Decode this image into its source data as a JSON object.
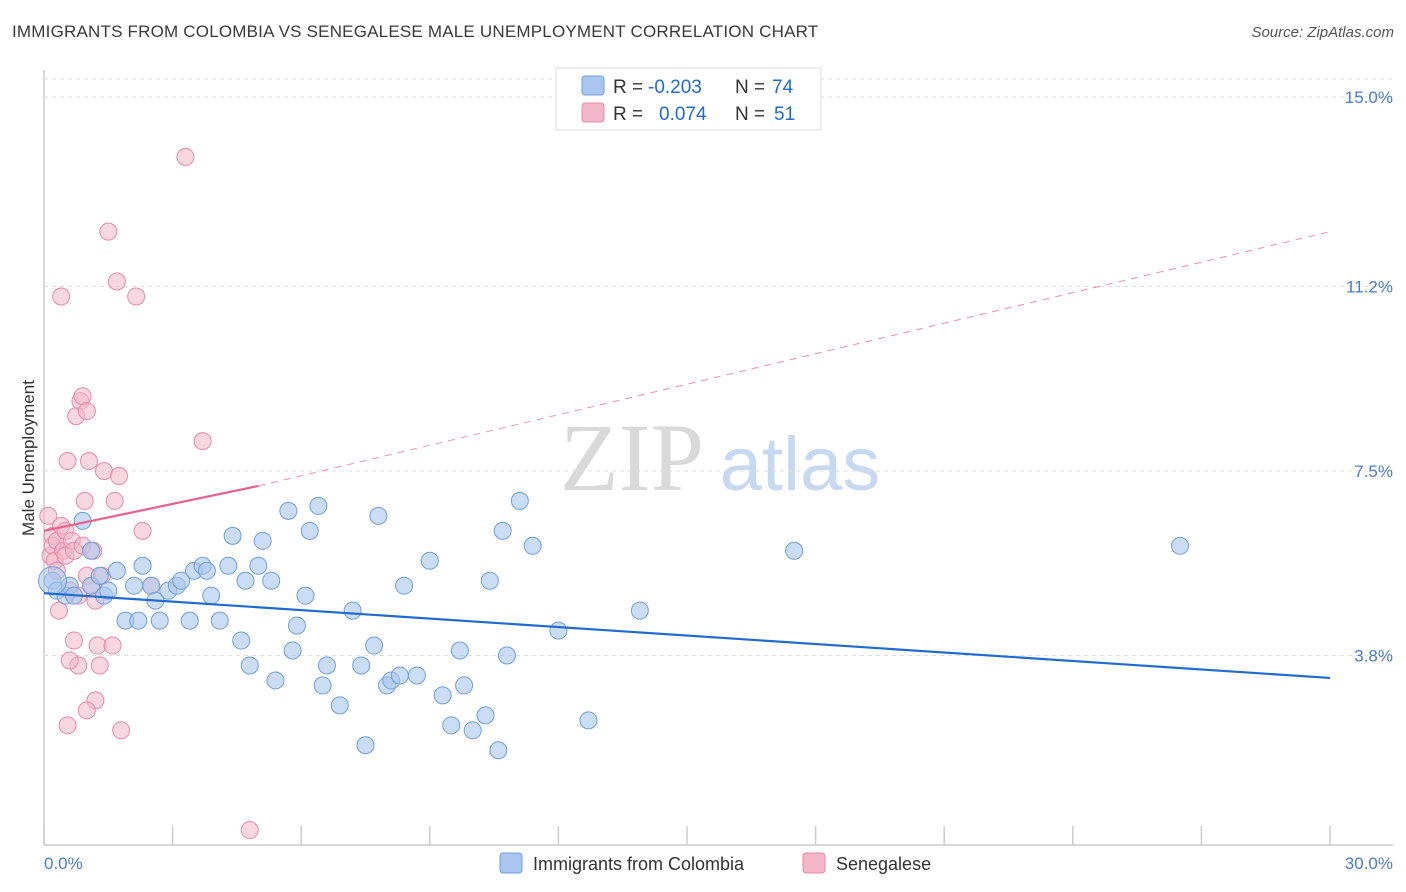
{
  "title": "IMMIGRANTS FROM COLOMBIA VS SENEGALESE MALE UNEMPLOYMENT CORRELATION CHART",
  "source": "Source: ZipAtlas.com",
  "watermark": {
    "zip": "ZIP",
    "atlas": "atlas"
  },
  "colors": {
    "blue": "#a9c6ee",
    "blue_edge": "#6f9fe0",
    "blue_line": "#1f6bd1",
    "pink": "#f4b6c9",
    "pink_edge": "#e88aa8",
    "pink_line": "#e8608c",
    "tick": "#4a7cc9",
    "grid": "#dddddd"
  },
  "legend": {
    "rows": [
      {
        "r_label": "R =",
        "r_value": "-0.203",
        "n_label": "N =",
        "n_value": "74"
      },
      {
        "r_label": "R =",
        "r_value": "0.074",
        "n_label": "N =",
        "n_value": "51"
      }
    ]
  },
  "bottom_legend": [
    "Immigrants from Colombia",
    "Senegalese"
  ],
  "chart_data": {
    "type": "scatter",
    "title": "IMMIGRANTS FROM COLOMBIA VS SENEGALESE MALE UNEMPLOYMENT CORRELATION CHART",
    "xlabel": "",
    "ylabel": "Male Unemployment",
    "xlim": [
      0,
      30
    ],
    "ylim": [
      0,
      15.9
    ],
    "x_tick_labels": [
      "0.0%",
      "30.0%"
    ],
    "y_ticks": [
      3.8,
      7.5,
      11.2,
      15.0
    ],
    "y_tick_labels": [
      "3.8%",
      "7.5%",
      "11.2%",
      "15.0%"
    ],
    "grid": true,
    "series": [
      {
        "name": "Immigrants from Colombia",
        "R": -0.203,
        "N": 74,
        "trend": {
          "x": [
            0,
            30
          ],
          "y": [
            5.05,
            3.35
          ],
          "style": "solid"
        },
        "points": [
          [
            0.2,
            5.3
          ],
          [
            0.3,
            5.1
          ],
          [
            0.5,
            5.0
          ],
          [
            0.6,
            5.2
          ],
          [
            0.7,
            5.0
          ],
          [
            0.9,
            6.5
          ],
          [
            1.1,
            5.2
          ],
          [
            1.1,
            5.9
          ],
          [
            1.3,
            5.4
          ],
          [
            1.4,
            5.0
          ],
          [
            1.5,
            5.1
          ],
          [
            1.7,
            5.5
          ],
          [
            1.9,
            4.5
          ],
          [
            2.1,
            5.2
          ],
          [
            2.2,
            4.5
          ],
          [
            2.3,
            5.6
          ],
          [
            2.5,
            5.2
          ],
          [
            2.6,
            4.9
          ],
          [
            2.7,
            4.5
          ],
          [
            2.9,
            5.1
          ],
          [
            3.1,
            5.2
          ],
          [
            3.2,
            5.3
          ],
          [
            3.4,
            4.5
          ],
          [
            3.5,
            5.5
          ],
          [
            3.7,
            5.6
          ],
          [
            3.8,
            5.5
          ],
          [
            3.9,
            5.0
          ],
          [
            4.1,
            4.5
          ],
          [
            4.3,
            5.6
          ],
          [
            4.4,
            6.2
          ],
          [
            4.6,
            4.1
          ],
          [
            4.7,
            5.3
          ],
          [
            4.8,
            3.6
          ],
          [
            5.0,
            5.6
          ],
          [
            5.1,
            6.1
          ],
          [
            5.3,
            5.3
          ],
          [
            5.4,
            3.3
          ],
          [
            5.7,
            6.7
          ],
          [
            5.8,
            3.9
          ],
          [
            5.9,
            4.4
          ],
          [
            6.1,
            5.0
          ],
          [
            6.2,
            6.3
          ],
          [
            6.4,
            6.8
          ],
          [
            6.5,
            3.2
          ],
          [
            6.6,
            3.6
          ],
          [
            6.9,
            2.8
          ],
          [
            7.2,
            4.7
          ],
          [
            7.4,
            3.6
          ],
          [
            7.5,
            2.0
          ],
          [
            7.7,
            4.0
          ],
          [
            7.8,
            6.6
          ],
          [
            8.0,
            3.2
          ],
          [
            8.1,
            3.3
          ],
          [
            8.3,
            3.4
          ],
          [
            8.4,
            5.2
          ],
          [
            8.7,
            3.4
          ],
          [
            9.0,
            5.7
          ],
          [
            9.3,
            3.0
          ],
          [
            9.5,
            2.4
          ],
          [
            9.7,
            3.9
          ],
          [
            9.8,
            3.2
          ],
          [
            10.0,
            2.3
          ],
          [
            10.3,
            2.6
          ],
          [
            10.4,
            5.3
          ],
          [
            10.6,
            1.9
          ],
          [
            10.7,
            6.3
          ],
          [
            10.8,
            3.8
          ],
          [
            11.1,
            6.9
          ],
          [
            11.4,
            6.0
          ],
          [
            12.0,
            4.3
          ],
          [
            12.7,
            2.5
          ],
          [
            13.9,
            4.7
          ],
          [
            17.5,
            5.9
          ],
          [
            26.5,
            6.0
          ]
        ]
      },
      {
        "name": "Senegalese",
        "R": 0.074,
        "N": 51,
        "trend_solid": {
          "x": [
            0,
            5.0
          ],
          "y": [
            6.3,
            7.2
          ]
        },
        "trend_dashed": {
          "x": [
            5.0,
            30
          ],
          "y": [
            7.2,
            12.3
          ]
        },
        "points": [
          [
            0.1,
            6.6
          ],
          [
            0.15,
            5.8
          ],
          [
            0.2,
            6.2
          ],
          [
            0.2,
            6.0
          ],
          [
            0.25,
            5.7
          ],
          [
            0.3,
            6.1
          ],
          [
            0.3,
            5.5
          ],
          [
            0.35,
            4.7
          ],
          [
            0.4,
            6.4
          ],
          [
            0.45,
            5.9
          ],
          [
            0.5,
            6.3
          ],
          [
            0.5,
            5.8
          ],
          [
            0.55,
            7.7
          ],
          [
            0.6,
            5.1
          ],
          [
            0.65,
            6.1
          ],
          [
            0.7,
            5.9
          ],
          [
            0.75,
            8.6
          ],
          [
            0.8,
            5.0
          ],
          [
            0.8,
            3.6
          ],
          [
            0.85,
            8.9
          ],
          [
            0.9,
            6.0
          ],
          [
            0.9,
            9.0
          ],
          [
            0.95,
            6.9
          ],
          [
            1.0,
            8.7
          ],
          [
            1.0,
            5.4
          ],
          [
            1.05,
            7.7
          ],
          [
            1.1,
            5.2
          ],
          [
            1.15,
            5.9
          ],
          [
            1.2,
            2.9
          ],
          [
            1.25,
            4.0
          ],
          [
            1.3,
            3.6
          ],
          [
            1.35,
            5.4
          ],
          [
            1.4,
            7.5
          ],
          [
            1.5,
            12.3
          ],
          [
            1.6,
            4.0
          ],
          [
            1.65,
            6.9
          ],
          [
            1.7,
            11.3
          ],
          [
            1.75,
            7.4
          ],
          [
            1.8,
            2.3
          ],
          [
            2.15,
            11.0
          ],
          [
            2.3,
            6.3
          ],
          [
            2.5,
            5.2
          ],
          [
            3.3,
            13.8
          ],
          [
            3.7,
            8.1
          ],
          [
            4.8,
            0.3
          ],
          [
            0.4,
            11.0
          ],
          [
            0.55,
            2.4
          ],
          [
            0.6,
            3.7
          ],
          [
            0.7,
            4.1
          ],
          [
            1.0,
            2.7
          ],
          [
            1.2,
            4.9
          ]
        ]
      }
    ]
  }
}
